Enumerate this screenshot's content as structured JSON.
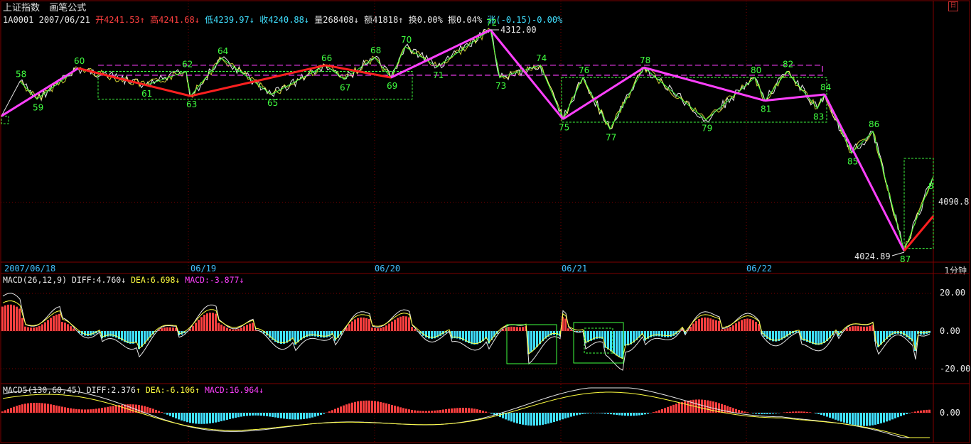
{
  "header": {
    "name": "上证指数",
    "mode": "画笔公式"
  },
  "info": {
    "code": "1A0001",
    "date": "2007/06/21",
    "open": "开4241.53",
    "high": "高4241.68",
    "low": "低4239.97",
    "close": "收4240.88",
    "volume": "量268408",
    "amount": "额41818",
    "turnover": "换0.00%",
    "amplitude": "振0.04%",
    "change": "涨(-0.15)-0.00%"
  },
  "period": "1分钟",
  "price_labels": {
    "high": "4312.00",
    "low": "4024.89",
    "current": "4090.8"
  },
  "macd": {
    "label": "MACD(26,12,9)",
    "diff": "DIFF:4.760",
    "dea": "DEA:6.698",
    "macd": "MACD:-3.877",
    "ticks": [
      "20.00",
      "0.00",
      "-20.00"
    ]
  },
  "macd5": {
    "label": "MACD5(130,60,45)",
    "diff": "DIFF:2.376",
    "dea": "DEA:-6.106",
    "macd": "MACD:16.964",
    "ticks": [
      "0.00"
    ]
  },
  "date_axis": [
    "2007/06/18",
    "06/19",
    "06/20",
    "06/21",
    "06/22"
  ],
  "colors": {
    "up": "#ff4040",
    "down": "#40e0ff",
    "stroke_main": "#ff40ff",
    "stroke_red": "#ff2020",
    "segment": "#40ff40",
    "grid": "#800000"
  },
  "chart_data": {
    "type": "line",
    "title": "上证指数",
    "x": [
      "2007/06/18",
      "06/19",
      "06/20",
      "06/21",
      "06/22"
    ],
    "y_range": [
      4024.89,
      4312.0
    ],
    "bi_points": [
      {
        "n": "58",
        "v": 4245
      },
      {
        "n": "59",
        "v": 4222
      },
      {
        "n": "60",
        "v": 4262
      },
      {
        "n": "61",
        "v": 4240
      },
      {
        "n": "62",
        "v": 4258
      },
      {
        "n": "63",
        "v": 4226
      },
      {
        "n": "64",
        "v": 4275
      },
      {
        "n": "65",
        "v": 4228
      },
      {
        "n": "66",
        "v": 4266
      },
      {
        "n": "67",
        "v": 4248
      },
      {
        "n": "68",
        "v": 4276
      },
      {
        "n": "69",
        "v": 4250
      },
      {
        "n": "70",
        "v": 4290
      },
      {
        "n": "71",
        "v": 4264
      },
      {
        "n": "72",
        "v": 4312
      },
      {
        "n": "73",
        "v": 4250
      },
      {
        "n": "74",
        "v": 4266
      },
      {
        "n": "75",
        "v": 4196
      },
      {
        "n": "76",
        "v": 4250
      },
      {
        "n": "77",
        "v": 4183
      },
      {
        "n": "78",
        "v": 4263
      },
      {
        "n": "79",
        "v": 4195
      },
      {
        "n": "80",
        "v": 4250
      },
      {
        "n": "81",
        "v": 4220
      },
      {
        "n": "82",
        "v": 4258
      },
      {
        "n": "83",
        "v": 4210
      },
      {
        "n": "84",
        "v": 4228
      },
      {
        "n": "85",
        "v": 4152
      },
      {
        "n": "86",
        "v": 4180
      },
      {
        "n": "87",
        "v": 4024.89
      },
      {
        "n": "8",
        "v": 4120
      }
    ],
    "macd_range": [
      -25,
      25
    ],
    "macd5_range": [
      -30,
      30
    ]
  }
}
